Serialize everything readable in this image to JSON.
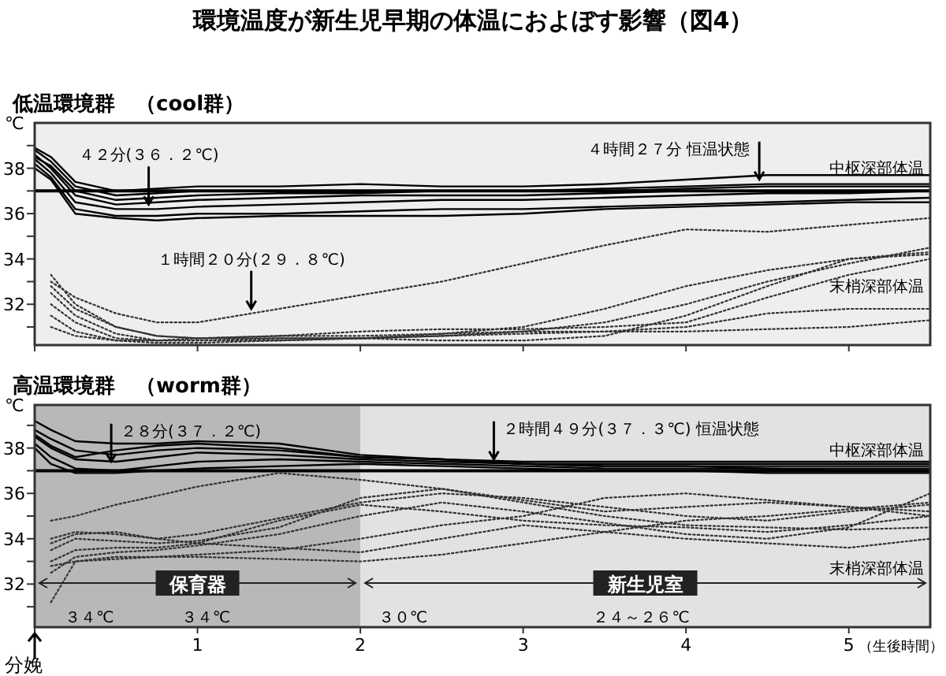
{
  "chart_data": [
    {
      "type": "line",
      "title": "環境温度が新生児早期の体温におよぼす影響（図4）",
      "subtitle": "低温環境群　（cool群）",
      "ylabel": "℃",
      "tick_labels": "y",
      "x": [
        0,
        0.1,
        0.25,
        0.5,
        0.75,
        1,
        1.5,
        2,
        2.5,
        3,
        3.5,
        4,
        4.5,
        5,
        5.5
      ],
      "xlim": [
        0,
        5.5
      ],
      "xticks": [
        0,
        1,
        2,
        3,
        4,
        5
      ],
      "ylim": [
        30.2,
        40
      ],
      "yticks": [
        {
          "value": 31,
          "label": null
        },
        32,
        {
          "value": 33,
          "label": null
        },
        34,
        {
          "value": 35,
          "label": null
        },
        36,
        {
          "value": 37,
          "label": null
        },
        38,
        {
          "value": 39,
          "label": null
        }
      ],
      "ref_lines": [
        {
          "axis": "y",
          "value": 37,
          "color": "#000000"
        }
      ],
      "series": [
        {
          "color": "#000000",
          "line_style": "solid",
          "values": [
            38.8,
            38.3,
            37.2,
            36.8,
            36.9,
            37.0,
            37.0,
            37.0,
            37.0,
            37.0,
            37.0,
            37.1,
            37.2,
            37.2,
            37.2
          ]
        },
        {
          "color": "#000000",
          "line_style": "solid",
          "values": [
            38.6,
            38.0,
            36.8,
            36.4,
            36.5,
            36.6,
            36.7,
            36.8,
            36.8,
            36.8,
            36.9,
            37.0,
            37.0,
            37.0,
            37.0
          ]
        },
        {
          "color": "#000000",
          "line_style": "solid",
          "values": [
            38.4,
            37.8,
            36.5,
            36.2,
            36.2,
            36.3,
            36.4,
            36.5,
            36.6,
            36.6,
            36.7,
            36.8,
            36.9,
            36.9,
            37.0
          ]
        },
        {
          "color": "#000000",
          "line_style": "solid",
          "values": [
            38.2,
            37.6,
            36.2,
            35.9,
            35.9,
            36.0,
            36.0,
            36.1,
            36.2,
            36.2,
            36.3,
            36.4,
            36.5,
            36.6,
            36.7
          ]
        },
        {
          "color": "#000000",
          "line_style": "solid",
          "values": [
            38.0,
            37.5,
            36.0,
            35.8,
            35.7,
            35.8,
            35.9,
            35.9,
            35.9,
            36.0,
            36.2,
            36.3,
            36.4,
            36.5,
            36.5
          ]
        },
        {
          "color": "#000000",
          "line_style": "solid",
          "values": [
            38.9,
            38.5,
            37.4,
            37.0,
            37.1,
            37.2,
            37.2,
            37.3,
            37.2,
            37.2,
            37.3,
            37.5,
            37.7,
            37.7,
            37.7
          ]
        },
        {
          "color": "#000000",
          "line_style": "solid",
          "values": [
            38.5,
            38.1,
            37.0,
            36.6,
            36.7,
            36.8,
            36.9,
            36.9,
            37.0,
            37.0,
            37.1,
            37.2,
            37.3,
            37.3,
            37.3
          ]
        },
        {
          "color": "#333333",
          "line_style": "dotted",
          "values": [
            null,
            33.0,
            32.3,
            31.6,
            31.2,
            31.2,
            31.8,
            32.4,
            33.0,
            33.8,
            34.6,
            35.3,
            35.2,
            35.5,
            35.8
          ]
        },
        {
          "color": "#333333",
          "line_style": "dotted",
          "values": [
            null,
            33.3,
            32.0,
            31.0,
            30.6,
            30.5,
            30.5,
            30.5,
            30.6,
            30.8,
            31.2,
            32.0,
            33.0,
            33.8,
            34.5
          ]
        },
        {
          "color": "#333333",
          "line_style": "dotted",
          "values": [
            null,
            32.5,
            31.5,
            30.7,
            30.4,
            30.4,
            30.5,
            30.5,
            30.4,
            30.4,
            30.6,
            31.5,
            32.8,
            34.0,
            34.3
          ]
        },
        {
          "color": "#333333",
          "line_style": "dotted",
          "values": [
            null,
            32.0,
            31.2,
            30.5,
            30.4,
            30.4,
            30.4,
            30.5,
            30.7,
            31.0,
            31.8,
            32.8,
            33.5,
            34.0,
            34.2
          ]
        },
        {
          "color": "#333333",
          "line_style": "dotted",
          "values": [
            null,
            31.5,
            30.8,
            30.4,
            30.3,
            30.3,
            30.4,
            30.5,
            30.6,
            30.7,
            30.8,
            31.0,
            31.6,
            31.8,
            31.8
          ]
        },
        {
          "color": "#333333",
          "line_style": "dotted",
          "values": [
            null,
            31.0,
            30.6,
            30.4,
            30.4,
            30.5,
            30.6,
            30.6,
            30.7,
            30.8,
            30.8,
            30.8,
            30.9,
            31.0,
            31.3
          ]
        },
        {
          "color": "#333333",
          "line_style": "dotted",
          "values": [
            null,
            32.8,
            31.8,
            31.0,
            30.6,
            30.5,
            30.6,
            30.8,
            30.9,
            30.9,
            31.0,
            31.2,
            32.3,
            33.3,
            34.0
          ]
        }
      ],
      "annotations": [
        {
          "text": "４２分(３６．２℃)",
          "x": 0.7,
          "y": 36.2
        },
        {
          "text": "４時間２７分 恒温状態",
          "x": 4.45,
          "y": 37.3
        },
        {
          "text": "１時間２０分(２９．８℃)",
          "x": 1.33,
          "y": 31.6
        },
        "中枢深部体温",
        "末梢深部体温"
      ]
    },
    {
      "type": "line",
      "subtitle": "高温環境群　（worm群）",
      "ylabel": "℃",
      "xlabel": "（生後時間）",
      "x": [
        0,
        0.1,
        0.25,
        0.5,
        0.75,
        1,
        1.5,
        2,
        2.5,
        3,
        3.5,
        4,
        4.5,
        5,
        5.5
      ],
      "xlim": [
        0,
        5.5
      ],
      "xticks": [
        {
          "value": 0,
          "label": null
        },
        1,
        2,
        3,
        4,
        5
      ],
      "ylim": [
        30.1,
        39.9
      ],
      "yticks": [
        {
          "value": 31,
          "label": null
        },
        32,
        {
          "value": 33,
          "label": null
        },
        34,
        {
          "value": 35,
          "label": null
        },
        36,
        {
          "value": 37,
          "label": null
        },
        38,
        {
          "value": 39,
          "label": null
        }
      ],
      "ref_lines": [
        {
          "axis": "y",
          "value": 37,
          "color": "#000000"
        }
      ],
      "bands": [
        {
          "axis": "x",
          "from": 0,
          "to": 2,
          "label": "保育器",
          "color": "#b8b8b8"
        },
        {
          "axis": "x",
          "from": 2,
          "to": 5.5,
          "label": "新生児室",
          "color": "#e2e2e2"
        }
      ],
      "series": [
        {
          "color": "#000000",
          "line_style": "solid",
          "values": [
            39.2,
            38.8,
            38.3,
            38.2,
            38.2,
            38.3,
            38.2,
            37.7,
            37.5,
            37.3,
            37.3,
            37.3,
            37.3,
            37.3,
            37.3
          ]
        },
        {
          "color": "#000000",
          "line_style": "solid",
          "values": [
            38.8,
            38.4,
            37.9,
            37.7,
            37.9,
            38.0,
            37.9,
            37.6,
            37.5,
            37.3,
            37.2,
            37.2,
            37.2,
            37.2,
            37.2
          ]
        },
        {
          "color": "#000000",
          "line_style": "solid",
          "values": [
            38.5,
            38.0,
            37.5,
            37.4,
            37.6,
            37.8,
            37.7,
            37.5,
            37.4,
            37.3,
            37.2,
            37.2,
            37.1,
            37.1,
            37.1
          ]
        },
        {
          "color": "#000000",
          "line_style": "solid",
          "values": [
            38.2,
            37.6,
            37.1,
            37.0,
            37.2,
            37.4,
            37.5,
            37.4,
            37.3,
            37.2,
            37.1,
            37.1,
            37.1,
            37.0,
            37.0
          ]
        },
        {
          "color": "#000000",
          "line_style": "solid",
          "values": [
            38.0,
            37.3,
            36.9,
            36.9,
            37.0,
            37.1,
            37.2,
            37.3,
            37.2,
            37.1,
            37.0,
            37.0,
            36.9,
            36.9,
            36.9
          ]
        },
        {
          "color": "#000000",
          "line_style": "solid",
          "values": [
            38.6,
            38.1,
            37.6,
            37.9,
            38.1,
            38.2,
            38.0,
            37.6,
            37.5,
            37.4,
            37.4,
            37.4,
            37.4,
            37.4,
            37.4
          ]
        },
        {
          "color": "#333333",
          "line_style": "dotted",
          "values": [
            null,
            34.8,
            35.0,
            35.5,
            35.9,
            36.3,
            36.9,
            36.6,
            36.2,
            35.6,
            35.0,
            34.6,
            34.5,
            34.4,
            34.5
          ]
        },
        {
          "color": "#333333",
          "line_style": "dotted",
          "values": [
            null,
            34.0,
            34.3,
            34.2,
            34.0,
            34.2,
            34.9,
            35.6,
            36.0,
            35.8,
            35.4,
            35.0,
            34.8,
            35.2,
            35.5
          ]
        },
        {
          "color": "#333333",
          "line_style": "dotted",
          "values": [
            null,
            33.5,
            34.0,
            33.9,
            33.8,
            33.9,
            34.5,
            35.8,
            36.2,
            35.7,
            35.2,
            35.4,
            35.6,
            35.4,
            35.2
          ]
        },
        {
          "color": "#333333",
          "line_style": "dotted",
          "values": [
            null,
            33.0,
            33.5,
            33.6,
            33.6,
            33.8,
            34.8,
            35.5,
            35.2,
            34.8,
            34.6,
            34.5,
            34.3,
            34.6,
            35.0
          ]
        },
        {
          "color": "#333333",
          "line_style": "dotted",
          "values": [
            null,
            32.5,
            33.2,
            33.4,
            33.5,
            33.7,
            34.2,
            35.0,
            35.6,
            35.2,
            34.7,
            34.2,
            34.0,
            34.5,
            36.0
          ]
        },
        {
          "color": "#333333",
          "line_style": "dotted",
          "values": [
            null,
            31.2,
            33.0,
            33.2,
            33.2,
            33.3,
            33.5,
            34.0,
            34.6,
            35.0,
            35.8,
            36.0,
            35.7,
            35.4,
            35.0
          ]
        },
        {
          "color": "#333333",
          "line_style": "dotted",
          "values": [
            null,
            33.8,
            34.2,
            34.3,
            34.0,
            33.8,
            33.6,
            33.4,
            34.0,
            34.6,
            34.3,
            34.0,
            33.8,
            33.6,
            34.0
          ]
        },
        {
          "color": "#333333",
          "line_style": "dotted",
          "values": [
            null,
            32.8,
            33.0,
            33.1,
            33.2,
            33.2,
            33.1,
            33.0,
            33.3,
            33.8,
            34.3,
            34.8,
            35.0,
            35.3,
            35.6
          ]
        }
      ],
      "annotations": [
        {
          "text": "２８分(３７．２℃)",
          "x": 0.47,
          "y": 37.2
        },
        {
          "text": "２時間４９分(３７．３℃) 恒温状態",
          "x": 2.82,
          "y": 37.3
        },
        "中枢深部体温",
        "末梢深部体温",
        "３４℃",
        "３４℃",
        "３０℃",
        "２４～２６℃",
        "分娩"
      ]
    }
  ]
}
